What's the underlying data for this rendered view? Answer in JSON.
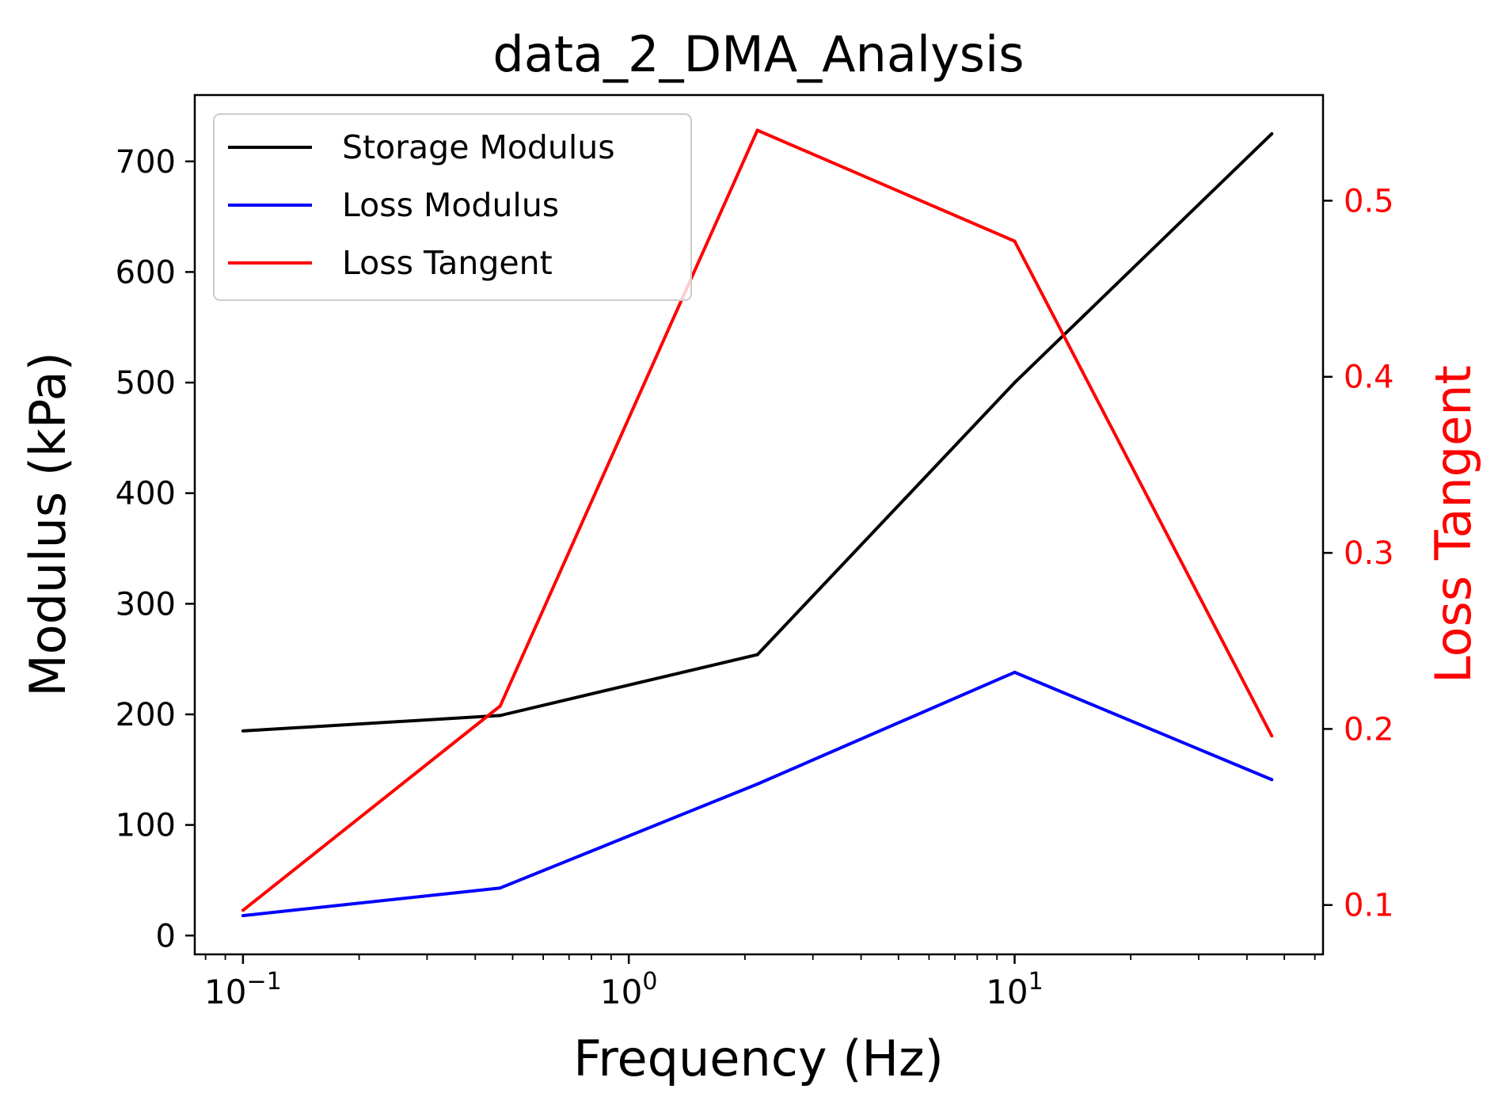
{
  "chart_data": {
    "type": "line",
    "title": "data_2_DMA_Analysis",
    "xlabel": "Frequency (Hz)",
    "ylabel": "Modulus (kPa)",
    "y2label": "Loss Tangent",
    "xscale": "log",
    "xlim": [
      0.075,
      63
    ],
    "ylim": [
      -17,
      760
    ],
    "y2lim": [
      0.072,
      0.56
    ],
    "x": [
      0.1,
      0.464,
      2.154,
      10.0,
      46.416
    ],
    "x_ticks": [
      {
        "value": 0.1,
        "base": "10",
        "exp": "−1"
      },
      {
        "value": 1,
        "base": "10",
        "exp": "0"
      },
      {
        "value": 10,
        "base": "10",
        "exp": "1"
      }
    ],
    "y_ticks": [
      0,
      100,
      200,
      300,
      400,
      500,
      600,
      700
    ],
    "y_tick_labels": [
      "0",
      "100",
      "200",
      "300",
      "400",
      "500",
      "600",
      "700"
    ],
    "y2_ticks": [
      0.1,
      0.2,
      0.3,
      0.4,
      0.5
    ],
    "y2_tick_labels": [
      "0.1",
      "0.2",
      "0.3",
      "0.4",
      "0.5"
    ],
    "grid": false,
    "legend_position": "top-left",
    "series": [
      {
        "name": "Storage Modulus",
        "axis": "left",
        "color": "#000000",
        "values": [
          185,
          199,
          254,
          500,
          725
        ]
      },
      {
        "name": "Loss Modulus",
        "axis": "left",
        "color": "#0000ff",
        "values": [
          18,
          43,
          137,
          238,
          141
        ]
      },
      {
        "name": "Loss Tangent",
        "axis": "right",
        "color": "#ff0000",
        "values": [
          0.097,
          0.213,
          0.54,
          0.477,
          0.196
        ]
      }
    ],
    "colors": {
      "axis": "#000000",
      "right_axis": "#ff0000"
    }
  }
}
